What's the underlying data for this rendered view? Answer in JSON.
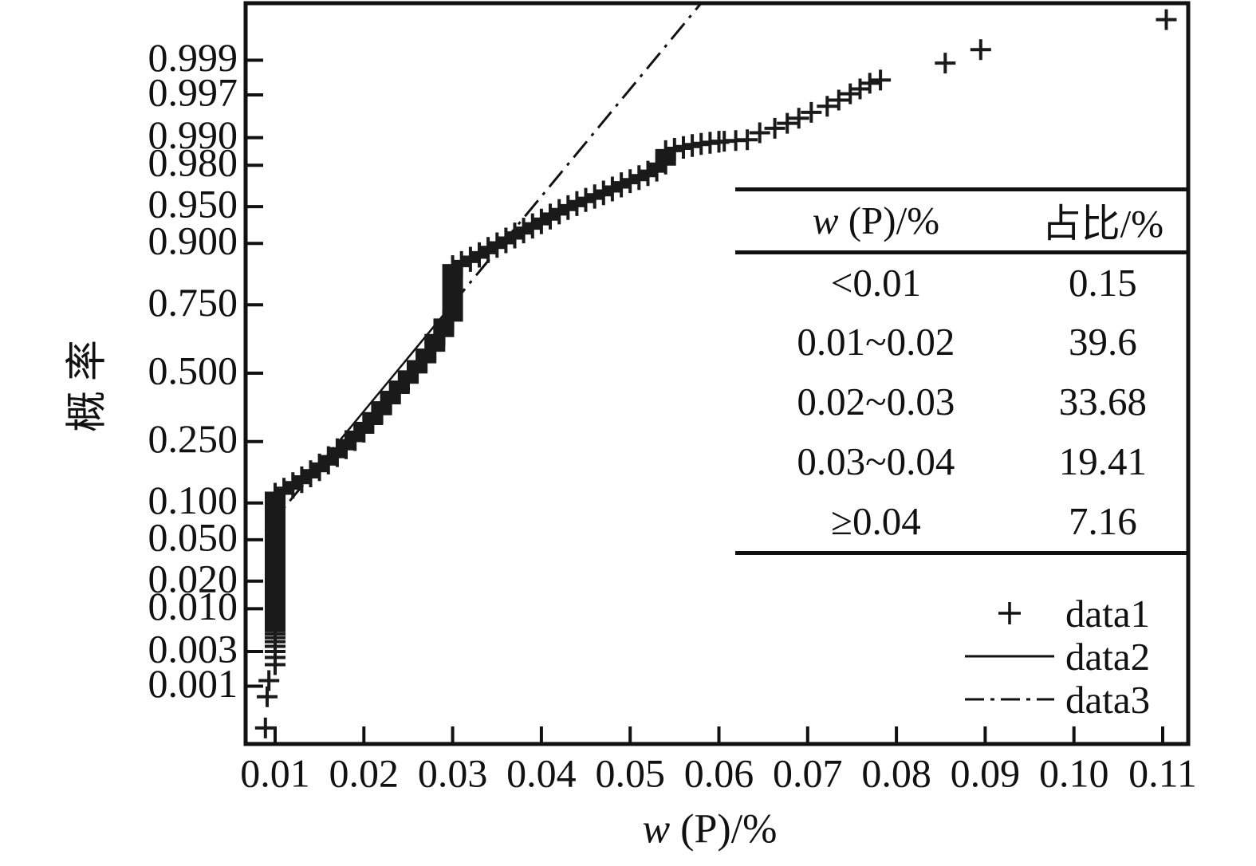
{
  "chart_data": {
    "type": "scatter",
    "subtype": "normal-probability-plot",
    "title": "",
    "xlabel": {
      "italic": "w",
      "rest": " (P)/%"
    },
    "ylabel": "概率",
    "x_ticks": [
      "0.01",
      "0.02",
      "0.03",
      "0.04",
      "0.05",
      "0.06",
      "0.07",
      "0.08",
      "0.09",
      "0.10",
      "0.11"
    ],
    "y_ticks": [
      "0.999",
      "0.997",
      "0.990",
      "0.980",
      "0.950",
      "0.900",
      "0.750",
      "0.500",
      "0.250",
      "0.100",
      "0.050",
      "0.020",
      "0.010",
      "0.003",
      "0.001"
    ],
    "x_range": [
      0.0067,
      0.1129
    ],
    "grid": false,
    "legend_position": "inside-lower-right",
    "series": [
      {
        "name": "data1",
        "marker": "plus",
        "steps": [
          [
            0.01,
            0.01,
            0.118
          ],
          [
            0.011,
            0.118,
            0.128
          ],
          [
            0.012,
            0.128,
            0.14
          ],
          [
            0.013,
            0.14,
            0.153
          ],
          [
            0.014,
            0.153,
            0.168
          ],
          [
            0.015,
            0.168,
            0.185
          ],
          [
            0.016,
            0.185,
            0.205
          ],
          [
            0.017,
            0.205,
            0.228
          ],
          [
            0.018,
            0.228,
            0.253
          ],
          [
            0.019,
            0.253,
            0.28
          ],
          [
            0.02,
            0.28,
            0.31
          ],
          [
            0.021,
            0.31,
            0.345
          ],
          [
            0.022,
            0.345,
            0.385
          ],
          [
            0.023,
            0.385,
            0.425
          ],
          [
            0.024,
            0.425,
            0.465
          ],
          [
            0.025,
            0.465,
            0.505
          ],
          [
            0.026,
            0.505,
            0.545
          ],
          [
            0.027,
            0.545,
            0.59
          ],
          [
            0.028,
            0.59,
            0.645
          ],
          [
            0.029,
            0.645,
            0.7
          ],
          [
            0.03,
            0.7,
            0.856
          ],
          [
            0.031,
            0.856,
            0.865
          ],
          [
            0.032,
            0.865,
            0.874
          ],
          [
            0.033,
            0.874,
            0.883
          ],
          [
            0.034,
            0.883,
            0.893
          ],
          [
            0.035,
            0.893,
            0.901
          ],
          [
            0.036,
            0.901,
            0.909
          ],
          [
            0.037,
            0.909,
            0.917
          ],
          [
            0.038,
            0.917,
            0.924
          ],
          [
            0.039,
            0.924,
            0.93
          ],
          [
            0.04,
            0.93,
            0.936
          ],
          [
            0.041,
            0.936,
            0.942
          ],
          [
            0.042,
            0.942,
            0.947
          ],
          [
            0.043,
            0.947,
            0.951
          ],
          [
            0.044,
            0.951,
            0.955
          ],
          [
            0.045,
            0.955,
            0.958
          ],
          [
            0.046,
            0.958,
            0.961
          ],
          [
            0.047,
            0.961,
            0.964
          ],
          [
            0.048,
            0.964,
            0.967
          ],
          [
            0.049,
            0.967,
            0.97
          ],
          [
            0.05,
            0.97,
            0.972
          ],
          [
            0.051,
            0.972,
            0.9745
          ],
          [
            0.052,
            0.9745,
            0.977
          ],
          [
            0.053,
            0.977,
            0.9805
          ],
          [
            0.054,
            0.9805,
            0.986
          ],
          [
            0.055,
            0.986,
            0.9868
          ],
          [
            0.056,
            0.9868,
            0.9874
          ],
          [
            0.057,
            0.9874,
            0.988
          ],
          [
            0.058,
            0.988,
            0.9884
          ],
          [
            0.059,
            0.9884,
            0.9887
          ],
          [
            0.06,
            0.9887,
            0.989
          ]
        ],
        "points": [
          [
            0.0089,
            0.00023
          ],
          [
            0.0091,
            0.0007
          ],
          [
            0.0093,
            0.0012
          ],
          [
            0.01,
            0.002
          ],
          [
            0.01,
            0.0025
          ],
          [
            0.01,
            0.003
          ],
          [
            0.01,
            0.0035
          ],
          [
            0.01,
            0.004
          ],
          [
            0.01,
            0.0045
          ],
          [
            0.01,
            0.005
          ],
          [
            0.01,
            0.0055
          ],
          [
            0.01,
            0.006
          ],
          [
            0.01,
            0.0065
          ],
          [
            0.01,
            0.007
          ],
          [
            0.01,
            0.0075
          ],
          [
            0.01,
            0.008
          ],
          [
            0.01,
            0.0085
          ],
          [
            0.01,
            0.009
          ],
          [
            0.01,
            0.0095
          ],
          [
            0.0606,
            0.989
          ],
          [
            0.0619,
            0.9892
          ],
          [
            0.0632,
            0.9894
          ],
          [
            0.0646,
            0.9912
          ],
          [
            0.0663,
            0.9922
          ],
          [
            0.0677,
            0.9932
          ],
          [
            0.069,
            0.9941
          ],
          [
            0.0704,
            0.995
          ],
          [
            0.0722,
            0.9958
          ],
          [
            0.0735,
            0.9965
          ],
          [
            0.0748,
            0.9971
          ],
          [
            0.0759,
            0.9975
          ],
          [
            0.077,
            0.9979
          ],
          [
            0.0782,
            0.9981
          ],
          [
            0.0855,
            0.9989
          ],
          [
            0.0895,
            0.9993
          ],
          [
            0.1104,
            0.99976
          ]
        ]
      },
      {
        "name": "data2",
        "style": "solid",
        "fit": {
          "mu": 0.02354,
          "sigma": 0.00943
        },
        "p_span": [
          0.25,
          0.75
        ]
      },
      {
        "name": "data3",
        "style": "dash-dot",
        "fit": {
          "mu": 0.02354,
          "sigma": 0.00943
        },
        "w_segments": [
          [
            0.0089,
            0.01718
          ],
          [
            0.0299,
            0.058
          ]
        ]
      }
    ],
    "inset_table": {
      "header": {
        "col1_italic": "w",
        "col1_rest": " (P)/%",
        "col2": "占比/%"
      },
      "rows": [
        [
          "<0.01",
          "0.15"
        ],
        [
          "0.01~0.02",
          "39.6"
        ],
        [
          "0.02~0.03",
          "33.68"
        ],
        [
          "0.03~0.04",
          "19.41"
        ],
        [
          "≥0.04",
          "7.16"
        ]
      ]
    },
    "legend": [
      {
        "marker": "plus",
        "label": "data1"
      },
      {
        "marker": "solid-line",
        "label": "data2"
      },
      {
        "marker": "dashdot-line",
        "label": "data3"
      }
    ],
    "colors": {
      "ink": "#111111",
      "marker": "#1a1a1a",
      "background": "#ffffff"
    }
  }
}
